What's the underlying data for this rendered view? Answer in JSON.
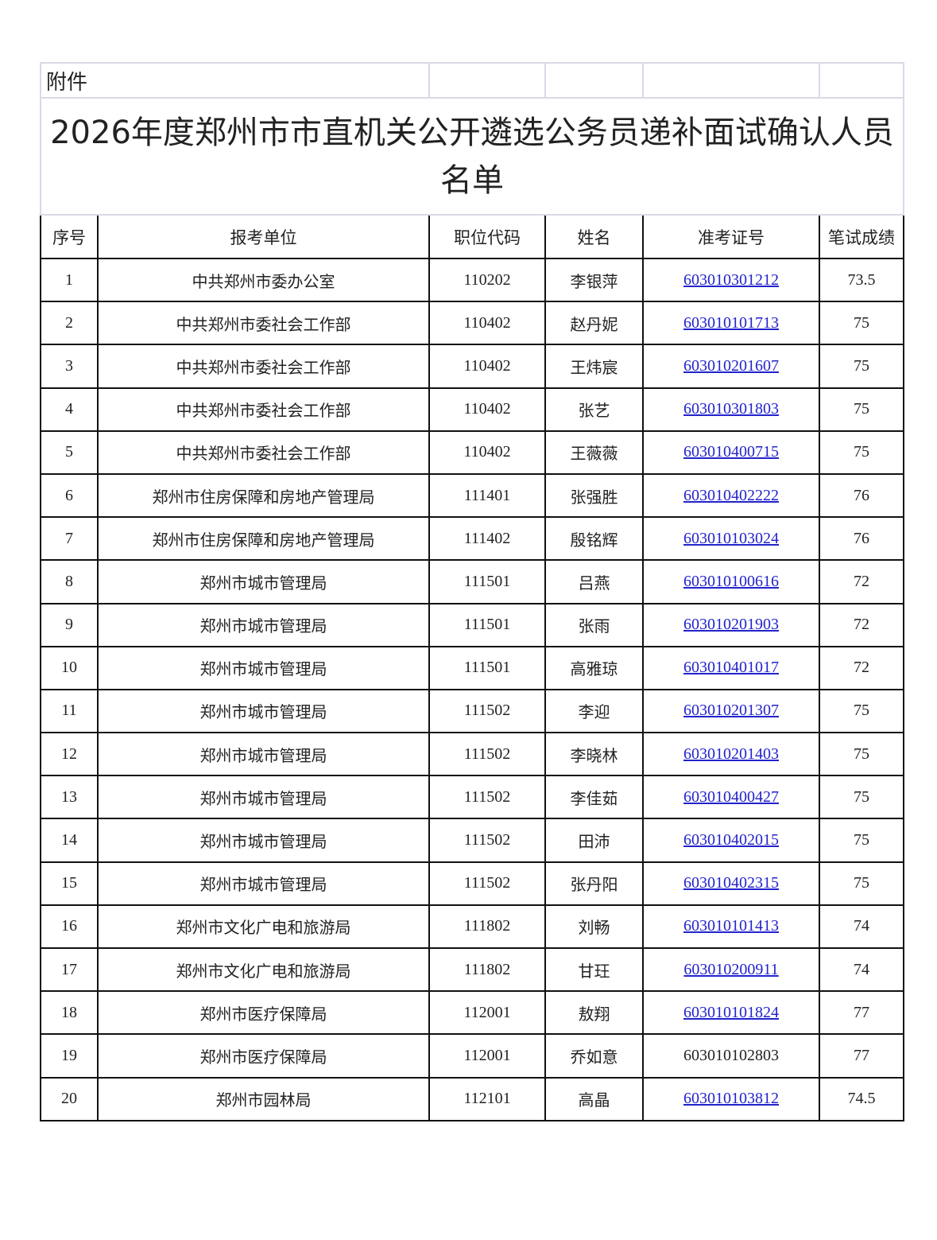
{
  "attachment": "附件",
  "title": "2026年度郑州市市直机关公开遴选公务员递补面试确认人员名单",
  "columns": [
    "序号",
    "报考单位",
    "职位代码",
    "姓名",
    "准考证号",
    "笔试成绩"
  ],
  "link_color": "#2222cc",
  "rows": [
    {
      "no": "1",
      "unit": "中共郑州市委办公室",
      "code": "110202",
      "name": "李银萍",
      "exam_id": "603010301212",
      "score": "73.5",
      "link": true
    },
    {
      "no": "2",
      "unit": "中共郑州市委社会工作部",
      "code": "110402",
      "name": "赵丹妮",
      "exam_id": "603010101713",
      "score": "75",
      "link": true
    },
    {
      "no": "3",
      "unit": "中共郑州市委社会工作部",
      "code": "110402",
      "name": "王炜宸",
      "exam_id": "603010201607",
      "score": "75",
      "link": true
    },
    {
      "no": "4",
      "unit": "中共郑州市委社会工作部",
      "code": "110402",
      "name": "张艺",
      "exam_id": "603010301803",
      "score": "75",
      "link": true
    },
    {
      "no": "5",
      "unit": "中共郑州市委社会工作部",
      "code": "110402",
      "name": "王薇薇",
      "exam_id": "603010400715",
      "score": "75",
      "link": true
    },
    {
      "no": "6",
      "unit": "郑州市住房保障和房地产管理局",
      "code": "111401",
      "name": "张强胜",
      "exam_id": "603010402222",
      "score": "76",
      "link": true
    },
    {
      "no": "7",
      "unit": "郑州市住房保障和房地产管理局",
      "code": "111402",
      "name": "殷铭辉",
      "exam_id": "603010103024",
      "score": "76",
      "link": true
    },
    {
      "no": "8",
      "unit": "郑州市城市管理局",
      "code": "111501",
      "name": "吕燕",
      "exam_id": "603010100616",
      "score": "72",
      "link": true
    },
    {
      "no": "9",
      "unit": "郑州市城市管理局",
      "code": "111501",
      "name": "张雨",
      "exam_id": "603010201903",
      "score": "72",
      "link": true
    },
    {
      "no": "10",
      "unit": "郑州市城市管理局",
      "code": "111501",
      "name": "高雅琼",
      "exam_id": "603010401017",
      "score": "72",
      "link": true
    },
    {
      "no": "11",
      "unit": "郑州市城市管理局",
      "code": "111502",
      "name": "李迎",
      "exam_id": "603010201307",
      "score": "75",
      "link": true
    },
    {
      "no": "12",
      "unit": "郑州市城市管理局",
      "code": "111502",
      "name": "李晓林",
      "exam_id": "603010201403",
      "score": "75",
      "link": true
    },
    {
      "no": "13",
      "unit": "郑州市城市管理局",
      "code": "111502",
      "name": "李佳茹",
      "exam_id": "603010400427",
      "score": "75",
      "link": true
    },
    {
      "no": "14",
      "unit": "郑州市城市管理局",
      "code": "111502",
      "name": "田沛",
      "exam_id": "603010402015",
      "score": "75",
      "link": true
    },
    {
      "no": "15",
      "unit": "郑州市城市管理局",
      "code": "111502",
      "name": "张丹阳",
      "exam_id": "603010402315",
      "score": "75",
      "link": true
    },
    {
      "no": "16",
      "unit": "郑州市文化广电和旅游局",
      "code": "111802",
      "name": "刘畅",
      "exam_id": "603010101413",
      "score": "74",
      "link": true
    },
    {
      "no": "17",
      "unit": "郑州市文化广电和旅游局",
      "code": "111802",
      "name": "甘玨",
      "exam_id": "603010200911",
      "score": "74",
      "link": true
    },
    {
      "no": "18",
      "unit": "郑州市医疗保障局",
      "code": "112001",
      "name": "敖翔",
      "exam_id": "603010101824",
      "score": "77",
      "link": true
    },
    {
      "no": "19",
      "unit": "郑州市医疗保障局",
      "code": "112001",
      "name": "乔如意",
      "exam_id": "603010102803",
      "score": "77",
      "link": false
    },
    {
      "no": "20",
      "unit": "郑州市园林局",
      "code": "112101",
      "name": "高晶",
      "exam_id": "603010103812",
      "score": "74.5",
      "link": true
    }
  ]
}
